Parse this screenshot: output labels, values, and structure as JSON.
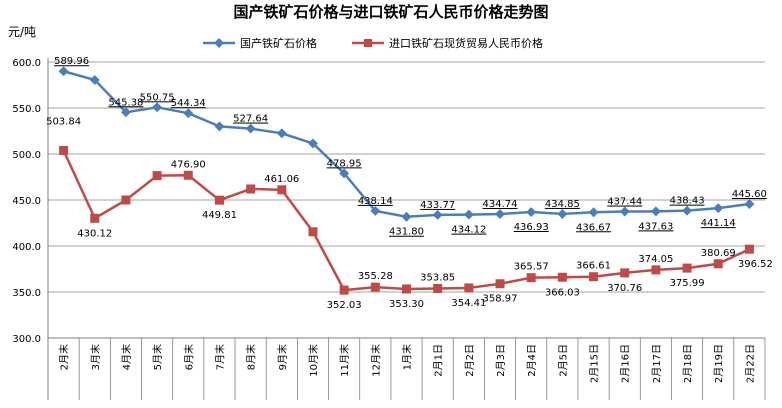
{
  "colors": {
    "series1": "#4a7ebb",
    "series2": "#be4b48",
    "grid": "#888888",
    "axis": "#808080"
  },
  "chart_data": {
    "type": "line",
    "title": "国产铁矿石价格与进口铁矿石人民币价格走势图",
    "ylabel": "元/吨",
    "xlabel": "",
    "ylim": [
      300,
      600
    ],
    "yticks": [
      "300.0",
      "350.0",
      "400.0",
      "450.0",
      "500.0",
      "550.0",
      "600.0"
    ],
    "grid": true,
    "legend_position": "top",
    "categories": [
      "2月末",
      "3月末",
      "4月末",
      "5月末",
      "6月末",
      "7月末",
      "8月末",
      "9月末",
      "10月末",
      "11月末",
      "12月末",
      "1月末",
      "2月1日",
      "2月2日",
      "2月3日",
      "2月4日",
      "2月5日",
      "2月15日",
      "2月16日",
      "2月17日",
      "2月18日",
      "2月19日",
      "2月22日"
    ],
    "series": [
      {
        "name": "国产铁矿石价格",
        "marker": "diamond",
        "values": [
          589.96,
          580.5,
          545.38,
          550.75,
          544.34,
          530.0,
          527.64,
          522.5,
          511.5,
          478.95,
          438.14,
          431.8,
          433.77,
          434.12,
          434.74,
          436.93,
          434.85,
          436.67,
          437.44,
          437.63,
          438.43,
          441.14,
          445.6
        ],
        "labels": [
          "589.96",
          "",
          "545.38",
          "550.75",
          "544.34",
          "",
          "527.64",
          "",
          "",
          "478.95",
          "438.14",
          "431.80",
          "433.77",
          "434.12",
          "434.74",
          "436.93",
          "434.85",
          "436.67",
          "437.44",
          "437.63",
          "438.43",
          "441.14",
          "445.60"
        ]
      },
      {
        "name": "进口铁矿石现货贸易人民币价格",
        "marker": "square",
        "values": [
          503.84,
          430.12,
          450.0,
          476.5,
          476.9,
          449.81,
          462.0,
          461.06,
          415.5,
          352.03,
          355.28,
          353.3,
          353.85,
          354.41,
          358.97,
          365.57,
          366.03,
          366.61,
          370.76,
          374.05,
          375.99,
          380.69,
          396.52
        ],
        "labels": [
          "503.84",
          "430.12",
          "",
          "",
          "476.90",
          "449.81",
          "",
          "461.06",
          "",
          "352.03",
          "355.28",
          "353.30",
          "353.85",
          "354.41",
          "358.97",
          "365.57",
          "366.03",
          "366.61",
          "370.76",
          "374.05",
          "375.99",
          "380.69",
          "396.52"
        ]
      }
    ]
  }
}
